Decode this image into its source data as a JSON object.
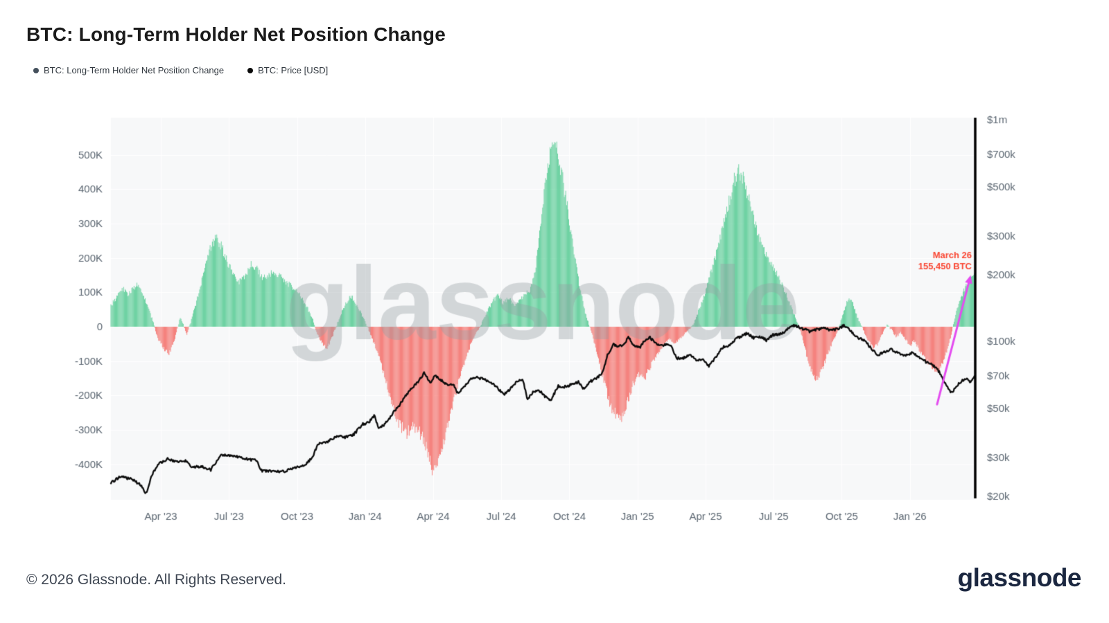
{
  "page": {
    "title": "BTC: Long-Term Holder Net Position Change",
    "copyright": "© 2026 Glassnode. All Rights Reserved.",
    "logo": "glassnode"
  },
  "legend": {
    "items": [
      {
        "label": "BTC: Long-Term Holder Net Position Change",
        "color": "#44505c"
      },
      {
        "label": "BTC: Price [USD]",
        "color": "#0a0a0a"
      }
    ]
  },
  "chart_data": {
    "type": "bar+line",
    "title": "BTC: Long-Term Holder Net Position Change",
    "watermark_text": "glassnode",
    "plot_background": "#f7f8f9",
    "grid": {
      "show": true,
      "color": "#ffffff"
    },
    "x_axis": {
      "unit": "months since Jan 2023",
      "start_t": 0.8,
      "end_t": 38.85,
      "ticks": [
        {
          "label": "Apr '23",
          "t": 3
        },
        {
          "label": "Jul '23",
          "t": 6
        },
        {
          "label": "Oct '23",
          "t": 9
        },
        {
          "label": "Jan '24",
          "t": 12
        },
        {
          "label": "Apr '24",
          "t": 15
        },
        {
          "label": "Jul '24",
          "t": 18
        },
        {
          "label": "Oct '24",
          "t": 21
        },
        {
          "label": "Jan '25",
          "t": 24
        },
        {
          "label": "Apr '25",
          "t": 27
        },
        {
          "label": "Jul '25",
          "t": 30
        },
        {
          "label": "Oct '25",
          "t": 33
        },
        {
          "label": "Jan '26",
          "t": 36
        }
      ]
    },
    "y_left_axis": {
      "unit": "BTC (thousands)",
      "ticks": [
        {
          "label": "500K",
          "v": 500
        },
        {
          "label": "400K",
          "v": 400
        },
        {
          "label": "300K",
          "v": 300
        },
        {
          "label": "200K",
          "v": 200
        },
        {
          "label": "100K",
          "v": 100
        },
        {
          "label": "0",
          "v": 0
        },
        {
          "label": "-100K",
          "v": -100
        },
        {
          "label": "-200K",
          "v": -200
        },
        {
          "label": "-300K",
          "v": -300
        },
        {
          "label": "-400K",
          "v": -400
        }
      ]
    },
    "y_right_axis": {
      "scale": "log",
      "unit": "USD (thousands)",
      "ticks": [
        {
          "label": "$1m",
          "v": 1000
        },
        {
          "label": "$700k",
          "v": 700
        },
        {
          "label": "$500k",
          "v": 500
        },
        {
          "label": "$300k",
          "v": 300
        },
        {
          "label": "$200k",
          "v": 200
        },
        {
          "label": "$100k",
          "v": 100
        },
        {
          "label": "$70k",
          "v": 70
        },
        {
          "label": "$50k",
          "v": 50
        },
        {
          "label": "$30k",
          "v": 30
        },
        {
          "label": "$20k",
          "v": 20
        }
      ]
    },
    "bar_series": {
      "name": "BTC: Long-Term Holder Net Position Change",
      "unit": "K BTC",
      "positive_color": "#4dc98e",
      "negative_color": "#f4655f",
      "anchors": [
        [
          0.8,
          60
        ],
        [
          1.1,
          92
        ],
        [
          1.35,
          110
        ],
        [
          1.55,
          95
        ],
        [
          1.8,
          112
        ],
        [
          2.0,
          122
        ],
        [
          2.2,
          95
        ],
        [
          2.45,
          55
        ],
        [
          2.65,
          15
        ],
        [
          2.85,
          -30
        ],
        [
          3.1,
          -60
        ],
        [
          3.35,
          -80
        ],
        [
          3.55,
          -50
        ],
        [
          3.7,
          -15
        ],
        [
          3.85,
          25
        ],
        [
          4.0,
          5
        ],
        [
          4.15,
          -20
        ],
        [
          4.3,
          10
        ],
        [
          4.5,
          55
        ],
        [
          4.75,
          120
        ],
        [
          5.0,
          185
        ],
        [
          5.25,
          245
        ],
        [
          5.45,
          255
        ],
        [
          5.7,
          230
        ],
        [
          5.95,
          185
        ],
        [
          6.2,
          150
        ],
        [
          6.45,
          130
        ],
        [
          6.7,
          148
        ],
        [
          6.95,
          180
        ],
        [
          7.2,
          172
        ],
        [
          7.45,
          142
        ],
        [
          7.7,
          146
        ],
        [
          7.95,
          158
        ],
        [
          8.2,
          150
        ],
        [
          8.45,
          132
        ],
        [
          8.7,
          120
        ],
        [
          8.95,
          105
        ],
        [
          9.2,
          85
        ],
        [
          9.45,
          55
        ],
        [
          9.7,
          20
        ],
        [
          9.9,
          -20
        ],
        [
          10.1,
          -48
        ],
        [
          10.3,
          -62
        ],
        [
          10.5,
          -38
        ],
        [
          10.7,
          -5
        ],
        [
          10.9,
          30
        ],
        [
          11.15,
          68
        ],
        [
          11.4,
          90
        ],
        [
          11.65,
          62
        ],
        [
          11.9,
          28
        ],
        [
          12.1,
          0
        ],
        [
          12.35,
          -40
        ],
        [
          12.6,
          -85
        ],
        [
          12.85,
          -140
        ],
        [
          13.1,
          -205
        ],
        [
          13.35,
          -262
        ],
        [
          13.6,
          -292
        ],
        [
          13.85,
          -310
        ],
        [
          14.1,
          -288
        ],
        [
          14.35,
          -302
        ],
        [
          14.6,
          -330
        ],
        [
          14.8,
          -372
        ],
        [
          14.95,
          -430
        ],
        [
          15.15,
          -398
        ],
        [
          15.4,
          -345
        ],
        [
          15.65,
          -282
        ],
        [
          15.9,
          -215
        ],
        [
          16.15,
          -152
        ],
        [
          16.4,
          -98
        ],
        [
          16.65,
          -52
        ],
        [
          16.9,
          -18
        ],
        [
          17.1,
          5
        ],
        [
          17.35,
          40
        ],
        [
          17.6,
          72
        ],
        [
          17.85,
          92
        ],
        [
          18.1,
          68
        ],
        [
          18.35,
          85
        ],
        [
          18.6,
          60
        ],
        [
          18.85,
          78
        ],
        [
          19.1,
          95
        ],
        [
          19.3,
          112
        ],
        [
          19.5,
          170
        ],
        [
          19.7,
          280
        ],
        [
          19.9,
          390
        ],
        [
          20.1,
          480
        ],
        [
          20.3,
          540
        ],
        [
          20.5,
          505
        ],
        [
          20.7,
          430
        ],
        [
          20.95,
          330
        ],
        [
          21.2,
          215
        ],
        [
          21.45,
          118
        ],
        [
          21.7,
          40
        ],
        [
          21.9,
          0
        ],
        [
          22.1,
          -45
        ],
        [
          22.35,
          -110
        ],
        [
          22.6,
          -180
        ],
        [
          22.85,
          -235
        ],
        [
          23.1,
          -258
        ],
        [
          23.3,
          -262
        ],
        [
          23.55,
          -222
        ],
        [
          23.8,
          -168
        ],
        [
          24.05,
          -138
        ],
        [
          24.3,
          -155
        ],
        [
          24.55,
          -118
        ],
        [
          24.8,
          -85
        ],
        [
          25.1,
          -58
        ],
        [
          25.4,
          -38
        ],
        [
          25.7,
          -48
        ],
        [
          26.0,
          -25
        ],
        [
          26.3,
          -8
        ],
        [
          26.55,
          20
        ],
        [
          26.8,
          65
        ],
        [
          27.05,
          115
        ],
        [
          27.3,
          170
        ],
        [
          27.55,
          235
        ],
        [
          27.8,
          305
        ],
        [
          28.05,
          370
        ],
        [
          28.25,
          425
        ],
        [
          28.45,
          458
        ],
        [
          28.65,
          430
        ],
        [
          28.9,
          372
        ],
        [
          29.15,
          310
        ],
        [
          29.4,
          255
        ],
        [
          29.65,
          210
        ],
        [
          29.9,
          185
        ],
        [
          30.15,
          155
        ],
        [
          30.4,
          118
        ],
        [
          30.65,
          78
        ],
        [
          30.9,
          35
        ],
        [
          31.1,
          5
        ],
        [
          31.3,
          -40
        ],
        [
          31.5,
          -95
        ],
        [
          31.7,
          -135
        ],
        [
          31.9,
          -152
        ],
        [
          32.1,
          -128
        ],
        [
          32.35,
          -85
        ],
        [
          32.6,
          -45
        ],
        [
          32.8,
          -15
        ],
        [
          33.0,
          25
        ],
        [
          33.2,
          68
        ],
        [
          33.4,
          82
        ],
        [
          33.6,
          45
        ],
        [
          33.8,
          10
        ],
        [
          34.0,
          -15
        ],
        [
          34.2,
          -45
        ],
        [
          34.4,
          -65
        ],
        [
          34.6,
          -48
        ],
        [
          34.8,
          -20
        ],
        [
          35.0,
          5
        ],
        [
          35.2,
          -10
        ],
        [
          35.4,
          -30
        ],
        [
          35.6,
          -18
        ],
        [
          35.8,
          -35
        ],
        [
          36.0,
          -55
        ],
        [
          36.2,
          -42
        ],
        [
          36.4,
          -65
        ],
        [
          36.6,
          -88
        ],
        [
          36.85,
          -108
        ],
        [
          37.1,
          -122
        ],
        [
          37.3,
          -128
        ],
        [
          37.5,
          -98
        ],
        [
          37.7,
          -55
        ],
        [
          37.85,
          -15
        ],
        [
          38.0,
          30
        ],
        [
          38.2,
          75
        ],
        [
          38.4,
          110
        ],
        [
          38.6,
          135
        ],
        [
          38.85,
          155.45
        ]
      ]
    },
    "line_series": {
      "name": "BTC: Price [USD]",
      "unit": "USD (thousands)",
      "color": "#0b0b0b",
      "anchors": [
        [
          0.8,
          23
        ],
        [
          1.2,
          24.5
        ],
        [
          1.7,
          24
        ],
        [
          2.1,
          22.5
        ],
        [
          2.35,
          20.5
        ],
        [
          2.6,
          25
        ],
        [
          2.9,
          28
        ],
        [
          3.3,
          29.5
        ],
        [
          3.7,
          28.5
        ],
        [
          4.1,
          29
        ],
        [
          4.4,
          27
        ],
        [
          4.8,
          27.3
        ],
        [
          5.2,
          26.3
        ],
        [
          5.6,
          30.5
        ],
        [
          6.0,
          30.6
        ],
        [
          6.4,
          30.2
        ],
        [
          6.9,
          29.3
        ],
        [
          7.2,
          29.2
        ],
        [
          7.45,
          26
        ],
        [
          7.9,
          26
        ],
        [
          8.4,
          25.9
        ],
        [
          8.9,
          26.8
        ],
        [
          9.3,
          27.5
        ],
        [
          9.7,
          30
        ],
        [
          9.9,
          34.3
        ],
        [
          10.3,
          35
        ],
        [
          10.7,
          37.3
        ],
        [
          11.1,
          37
        ],
        [
          11.5,
          38
        ],
        [
          11.9,
          42.5
        ],
        [
          12.15,
          43
        ],
        [
          12.4,
          46.5
        ],
        [
          12.6,
          40
        ],
        [
          12.9,
          42.8
        ],
        [
          13.2,
          47
        ],
        [
          13.5,
          51.5
        ],
        [
          13.8,
          57
        ],
        [
          14.1,
          62
        ],
        [
          14.45,
          68
        ],
        [
          14.6,
          73
        ],
        [
          14.85,
          65
        ],
        [
          15.1,
          70
        ],
        [
          15.35,
          67
        ],
        [
          15.6,
          64
        ],
        [
          15.9,
          63.5
        ],
        [
          16.1,
          58
        ],
        [
          16.4,
          63
        ],
        [
          16.7,
          68
        ],
        [
          16.95,
          69
        ],
        [
          17.2,
          67.5
        ],
        [
          17.5,
          66
        ],
        [
          17.8,
          62
        ],
        [
          18.1,
          57.5
        ],
        [
          18.4,
          61
        ],
        [
          18.7,
          66.5
        ],
        [
          18.95,
          67
        ],
        [
          19.15,
          55
        ],
        [
          19.4,
          59
        ],
        [
          19.7,
          60
        ],
        [
          19.95,
          56
        ],
        [
          20.2,
          54.5
        ],
        [
          20.5,
          63
        ],
        [
          20.8,
          62.5
        ],
        [
          21.1,
          64
        ],
        [
          21.4,
          65.5
        ],
        [
          21.6,
          61
        ],
        [
          21.9,
          66
        ],
        [
          22.2,
          68
        ],
        [
          22.45,
          72
        ],
        [
          22.7,
          88
        ],
        [
          22.95,
          97
        ],
        [
          23.2,
          95
        ],
        [
          23.45,
          98
        ],
        [
          23.6,
          105
        ],
        [
          23.85,
          95
        ],
        [
          24.1,
          94
        ],
        [
          24.35,
          102
        ],
        [
          24.55,
          104
        ],
        [
          24.8,
          98
        ],
        [
          25.1,
          96.5
        ],
        [
          25.45,
          96
        ],
        [
          25.75,
          84
        ],
        [
          26.0,
          84
        ],
        [
          26.3,
          86.5
        ],
        [
          26.6,
          82.5
        ],
        [
          26.9,
          83
        ],
        [
          27.15,
          77.5
        ],
        [
          27.45,
          85
        ],
        [
          27.75,
          94
        ],
        [
          28.05,
          96.5
        ],
        [
          28.35,
          103
        ],
        [
          28.6,
          106
        ],
        [
          28.85,
          109
        ],
        [
          29.1,
          104
        ],
        [
          29.4,
          105.5
        ],
        [
          29.7,
          101
        ],
        [
          29.95,
          107
        ],
        [
          30.2,
          108
        ],
        [
          30.5,
          110
        ],
        [
          30.75,
          118
        ],
        [
          31.0,
          117.5
        ],
        [
          31.3,
          114
        ],
        [
          31.6,
          111
        ],
        [
          31.9,
          113
        ],
        [
          32.2,
          116
        ],
        [
          32.5,
          112
        ],
        [
          32.8,
          114
        ],
        [
          33.1,
          118
        ],
        [
          33.4,
          112
        ],
        [
          33.7,
          104
        ],
        [
          34.0,
          101
        ],
        [
          34.3,
          93
        ],
        [
          34.6,
          87
        ],
        [
          34.9,
          90
        ],
        [
          35.2,
          92
        ],
        [
          35.5,
          88
        ],
        [
          35.8,
          87
        ],
        [
          36.1,
          89
        ],
        [
          36.4,
          85
        ],
        [
          36.7,
          81
        ],
        [
          37.0,
          78.5
        ],
        [
          37.3,
          73
        ],
        [
          37.6,
          63
        ],
        [
          37.85,
          58.5
        ],
        [
          38.05,
          63
        ],
        [
          38.25,
          66
        ],
        [
          38.45,
          68
        ],
        [
          38.65,
          66
        ],
        [
          38.85,
          69
        ]
      ]
    },
    "annotation": {
      "lines": [
        "March 26",
        "155,450 BTC"
      ],
      "color": "#fa4632",
      "t": 38.8,
      "net_k": 215,
      "arrow": {
        "color": "#e44cf0",
        "from_t": 37.2,
        "from_price_k": 52,
        "to_t": 38.68,
        "to_net_k": 150
      }
    }
  }
}
